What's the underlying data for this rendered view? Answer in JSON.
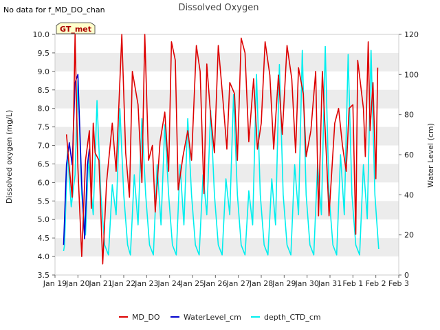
{
  "header": {
    "note": "No data for f_MD_DO_chan",
    "title": "Dissolved Oxygen",
    "site_badge": "GT_met"
  },
  "colors": {
    "md_do": "#dd0000",
    "water_level": "#0000cc",
    "depth_ctd": "#00eeee",
    "band": "#ececec",
    "badge_fill": "#ffffcc",
    "badge_text": "#aa0000"
  },
  "chart_data": {
    "type": "line",
    "title": "Dissolved Oxygen",
    "ylabel": "Dissolved oxygen (mg/L)",
    "y2label": "Water Level (cm)",
    "xlabel": "",
    "ylim": [
      3.5,
      10.0
    ],
    "y2lim": [
      0,
      120
    ],
    "xlim": [
      "2024-01-19",
      "2024-02-03"
    ],
    "x_ticks": [
      "Jan 19",
      "Jan 20",
      "Jan 21",
      "Jan 22",
      "Jan 23",
      "Jan 24",
      "Jan 25",
      "Jan 26",
      "Jan 27",
      "Jan 28",
      "Jan 29",
      "Jan 30",
      "Jan 31",
      "Feb 1",
      "Feb 2",
      "Feb 3"
    ],
    "y_ticks": [
      "3.5",
      "4.0",
      "4.5",
      "5.0",
      "5.5",
      "6.0",
      "6.5",
      "7.0",
      "7.5",
      "8.0",
      "8.5",
      "9.0",
      "9.5",
      "10.0"
    ],
    "y2_ticks": [
      "0",
      "20",
      "40",
      "60",
      "80",
      "100",
      "120"
    ],
    "grid": "alternating horizontal bands",
    "legend_position": "bottom",
    "series": [
      {
        "name": "MD_DO",
        "axis": "left",
        "points": [
          [
            "2024-01-19 12:00",
            7.3
          ],
          [
            "2024-01-19 15:00",
            6.4
          ],
          [
            "2024-01-19 18:00",
            5.6
          ],
          [
            "2024-01-19 21:00",
            10.0
          ],
          [
            "2024-01-20 00:00",
            6.4
          ],
          [
            "2024-01-20 04:00",
            4.0
          ],
          [
            "2024-01-20 08:00",
            6.6
          ],
          [
            "2024-01-20 12:00",
            7.4
          ],
          [
            "2024-01-20 14:00",
            5.3
          ],
          [
            "2024-01-20 16:00",
            7.6
          ],
          [
            "2024-01-20 18:00",
            6.8
          ],
          [
            "2024-01-20 22:00",
            6.6
          ],
          [
            "2024-01-21 02:00",
            3.8
          ],
          [
            "2024-01-21 06:00",
            6.0
          ],
          [
            "2024-01-21 12:00",
            7.6
          ],
          [
            "2024-01-21 16:00",
            6.3
          ],
          [
            "2024-01-21 22:00",
            10.0
          ],
          [
            "2024-01-22 02:00",
            6.8
          ],
          [
            "2024-01-22 06:00",
            5.6
          ],
          [
            "2024-01-22 09:00",
            9.0
          ],
          [
            "2024-01-22 15:00",
            8.1
          ],
          [
            "2024-01-22 19:00",
            6.0
          ],
          [
            "2024-01-22 22:00",
            10.0
          ],
          [
            "2024-01-23 02:00",
            6.6
          ],
          [
            "2024-01-23 06:00",
            7.0
          ],
          [
            "2024-01-23 09:00",
            5.2
          ],
          [
            "2024-01-23 14:00",
            7.1
          ],
          [
            "2024-01-23 19:00",
            7.9
          ],
          [
            "2024-01-23 23:00",
            6.3
          ],
          [
            "2024-01-24 02:00",
            9.8
          ],
          [
            "2024-01-24 06:00",
            9.3
          ],
          [
            "2024-01-24 09:00",
            5.8
          ],
          [
            "2024-01-24 14:00",
            6.7
          ],
          [
            "2024-01-24 19:00",
            7.4
          ],
          [
            "2024-01-24 23:00",
            6.6
          ],
          [
            "2024-01-25 04:00",
            9.7
          ],
          [
            "2024-01-25 08:00",
            9.0
          ],
          [
            "2024-01-25 12:00",
            5.7
          ],
          [
            "2024-01-25 15:00",
            9.2
          ],
          [
            "2024-01-25 19:00",
            7.8
          ],
          [
            "2024-01-25 23:00",
            6.8
          ],
          [
            "2024-01-26 03:00",
            9.7
          ],
          [
            "2024-01-26 08:00",
            8.2
          ],
          [
            "2024-01-26 12:00",
            6.9
          ],
          [
            "2024-01-26 15:00",
            8.7
          ],
          [
            "2024-01-26 20:00",
            8.4
          ],
          [
            "2024-01-26 23:00",
            6.6
          ],
          [
            "2024-01-27 03:00",
            9.9
          ],
          [
            "2024-01-27 07:00",
            9.5
          ],
          [
            "2024-01-27 11:00",
            7.1
          ],
          [
            "2024-01-27 16:00",
            8.8
          ],
          [
            "2024-01-27 20:00",
            6.9
          ],
          [
            "2024-01-28 00:00",
            7.6
          ],
          [
            "2024-01-28 04:00",
            9.8
          ],
          [
            "2024-01-28 09:00",
            8.9
          ],
          [
            "2024-01-28 13:00",
            6.9
          ],
          [
            "2024-01-28 18:00",
            8.9
          ],
          [
            "2024-01-28 22:00",
            7.3
          ],
          [
            "2024-01-29 03:00",
            9.7
          ],
          [
            "2024-01-29 08:00",
            8.8
          ],
          [
            "2024-01-29 12:00",
            6.8
          ],
          [
            "2024-01-29 15:00",
            9.1
          ],
          [
            "2024-01-29 20:00",
            8.4
          ],
          [
            "2024-01-29 23:00",
            6.7
          ],
          [
            "2024-01-30 04:00",
            7.4
          ],
          [
            "2024-01-30 09:00",
            9.0
          ],
          [
            "2024-01-30 12:00",
            5.1
          ],
          [
            "2024-01-30 16:00",
            9.0
          ],
          [
            "2024-01-30 21:00",
            6.3
          ],
          [
            "2024-01-30 23:00",
            5.1
          ],
          [
            "2024-01-31 05:00",
            7.6
          ],
          [
            "2024-01-31 09:00",
            8.0
          ],
          [
            "2024-01-31 13:00",
            7.0
          ],
          [
            "2024-01-31 17:00",
            6.3
          ],
          [
            "2024-01-31 20:00",
            8.0
          ],
          [
            "2024-02-01 00:00",
            8.1
          ],
          [
            "2024-02-01 03:00",
            4.6
          ],
          [
            "2024-02-01 05:00",
            9.3
          ],
          [
            "2024-02-01 11:00",
            8.0
          ],
          [
            "2024-02-01 13:00",
            6.7
          ],
          [
            "2024-02-01 16:00",
            9.8
          ],
          [
            "2024-02-01 18:00",
            7.4
          ],
          [
            "2024-02-01 21:00",
            8.7
          ],
          [
            "2024-02-02 00:00",
            6.1
          ],
          [
            "2024-02-02 02:00",
            9.1
          ]
        ]
      },
      {
        "name": "WaterLevel_cm",
        "axis": "right",
        "points": [
          [
            "2024-01-19 09:00",
            15
          ],
          [
            "2024-01-19 12:00",
            55
          ],
          [
            "2024-01-19 15:00",
            66
          ],
          [
            "2024-01-19 18:00",
            55
          ],
          [
            "2024-01-19 21:00",
            96
          ],
          [
            "2024-01-20 00:00",
            100
          ],
          [
            "2024-01-20 04:00",
            45
          ],
          [
            "2024-01-20 07:00",
            18
          ],
          [
            "2024-01-20 10:00",
            55
          ],
          [
            "2024-01-20 12:00",
            63
          ]
        ]
      },
      {
        "name": "depth_CTD_cm",
        "axis": "right",
        "points": [
          [
            "2024-01-19 09:00",
            12
          ],
          [
            "2024-01-19 10:00",
            15
          ],
          [
            "2024-01-19 13:00",
            62
          ],
          [
            "2024-01-19 17:00",
            34
          ],
          [
            "2024-01-19 21:00",
            50
          ],
          [
            "2024-01-20 00:00",
            97
          ],
          [
            "2024-01-20 04:00",
            40
          ],
          [
            "2024-01-20 08:00",
            20
          ],
          [
            "2024-01-20 11:00",
            58
          ],
          [
            "2024-01-20 16:00",
            30
          ],
          [
            "2024-01-20 20:00",
            87
          ],
          [
            "2024-01-21 00:00",
            40
          ],
          [
            "2024-01-21 04:00",
            15
          ],
          [
            "2024-01-21 08:00",
            10
          ],
          [
            "2024-01-21 12:00",
            45
          ],
          [
            "2024-01-21 16:00",
            30
          ],
          [
            "2024-01-21 20:00",
            83
          ],
          [
            "2024-01-22 00:00",
            40
          ],
          [
            "2024-01-22 04:00",
            15
          ],
          [
            "2024-01-22 07:00",
            10
          ],
          [
            "2024-01-22 11:00",
            50
          ],
          [
            "2024-01-22 15:00",
            25
          ],
          [
            "2024-01-22 19:00",
            78
          ],
          [
            "2024-01-22 23:00",
            40
          ],
          [
            "2024-01-23 03:00",
            15
          ],
          [
            "2024-01-23 07:00",
            10
          ],
          [
            "2024-01-23 11:00",
            55
          ],
          [
            "2024-01-23 15:00",
            25
          ],
          [
            "2024-01-23 19:00",
            75
          ],
          [
            "2024-01-23 23:00",
            40
          ],
          [
            "2024-01-24 03:00",
            15
          ],
          [
            "2024-01-24 07:00",
            10
          ],
          [
            "2024-01-24 11:00",
            55
          ],
          [
            "2024-01-24 15:00",
            25
          ],
          [
            "2024-01-24 19:00",
            78
          ],
          [
            "2024-01-24 23:00",
            40
          ],
          [
            "2024-01-25 03:00",
            15
          ],
          [
            "2024-01-25 07:00",
            10
          ],
          [
            "2024-01-25 11:00",
            50
          ],
          [
            "2024-01-25 15:00",
            30
          ],
          [
            "2024-01-25 19:00",
            82
          ],
          [
            "2024-01-25 23:00",
            40
          ],
          [
            "2024-01-26 03:00",
            15
          ],
          [
            "2024-01-26 07:00",
            10
          ],
          [
            "2024-01-26 11:00",
            48
          ],
          [
            "2024-01-26 15:00",
            30
          ],
          [
            "2024-01-26 19:00",
            90
          ],
          [
            "2024-01-26 23:00",
            40
          ],
          [
            "2024-01-27 03:00",
            15
          ],
          [
            "2024-01-27 07:00",
            10
          ],
          [
            "2024-01-27 11:00",
            42
          ],
          [
            "2024-01-27 15:00",
            25
          ],
          [
            "2024-01-27 19:00",
            100
          ],
          [
            "2024-01-27 23:00",
            40
          ],
          [
            "2024-01-28 03:00",
            15
          ],
          [
            "2024-01-28 07:00",
            10
          ],
          [
            "2024-01-28 11:00",
            48
          ],
          [
            "2024-01-28 15:00",
            25
          ],
          [
            "2024-01-28 19:00",
            105
          ],
          [
            "2024-01-28 23:00",
            40
          ],
          [
            "2024-01-29 03:00",
            15
          ],
          [
            "2024-01-29 07:00",
            10
          ],
          [
            "2024-01-29 11:00",
            55
          ],
          [
            "2024-01-29 15:00",
            30
          ],
          [
            "2024-01-29 19:00",
            112
          ],
          [
            "2024-01-29 23:00",
            40
          ],
          [
            "2024-01-30 03:00",
            15
          ],
          [
            "2024-01-30 07:00",
            10
          ],
          [
            "2024-01-30 11:00",
            55
          ],
          [
            "2024-01-30 15:00",
            30
          ],
          [
            "2024-01-30 19:00",
            114
          ],
          [
            "2024-01-30 23:00",
            40
          ],
          [
            "2024-01-31 03:00",
            15
          ],
          [
            "2024-01-31 07:00",
            10
          ],
          [
            "2024-01-31 11:00",
            60
          ],
          [
            "2024-01-31 15:00",
            30
          ],
          [
            "2024-01-31 19:00",
            110
          ],
          [
            "2024-01-31 23:00",
            40
          ],
          [
            "2024-02-01 03:00",
            15
          ],
          [
            "2024-02-01 07:00",
            10
          ],
          [
            "2024-02-01 11:00",
            55
          ],
          [
            "2024-02-01 15:00",
            28
          ],
          [
            "2024-02-01 19:00",
            112
          ],
          [
            "2024-02-01 23:00",
            40
          ],
          [
            "2024-02-02 03:00",
            13
          ]
        ]
      }
    ]
  }
}
